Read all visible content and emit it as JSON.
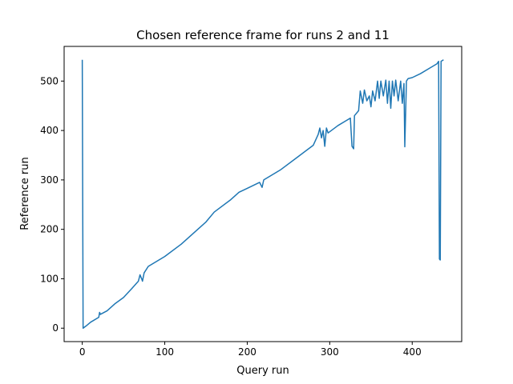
{
  "chart_data": {
    "type": "line",
    "title": "Chosen reference frame for runs 2 and 11",
    "xlabel": "Query run",
    "ylabel": "Reference run",
    "x": [
      0,
      1,
      5,
      10,
      20,
      21,
      22,
      30,
      40,
      50,
      60,
      68,
      70,
      72,
      73,
      75,
      80,
      100,
      120,
      140,
      150,
      160,
      180,
      190,
      200,
      215,
      218,
      220,
      240,
      260,
      280,
      286,
      288,
      290,
      292,
      294,
      296,
      298,
      310,
      320,
      325,
      327,
      329,
      330,
      335,
      337,
      340,
      342,
      345,
      348,
      350,
      352,
      355,
      358,
      360,
      362,
      365,
      368,
      370,
      372,
      374,
      376,
      378,
      380,
      383,
      386,
      388,
      390,
      391,
      393,
      395,
      400,
      410,
      420,
      430,
      432,
      433,
      434,
      435,
      438
    ],
    "series": [
      {
        "name": "reference",
        "color": "#1f77b4",
        "values": [
          543,
          0,
          5,
          12,
          22,
          32,
          28,
          35,
          50,
          62,
          80,
          95,
          108,
          100,
          95,
          112,
          125,
          145,
          170,
          200,
          215,
          235,
          260,
          275,
          283,
          295,
          285,
          300,
          320,
          345,
          370,
          392,
          405,
          385,
          400,
          368,
          405,
          395,
          410,
          420,
          425,
          368,
          363,
          430,
          440,
          480,
          455,
          482,
          460,
          470,
          448,
          480,
          460,
          500,
          465,
          500,
          470,
          502,
          455,
          500,
          445,
          500,
          470,
          502,
          460,
          500,
          455,
          495,
          367,
          500,
          505,
          507,
          515,
          525,
          535,
          540,
          140,
          138,
          540,
          543
        ]
      }
    ],
    "xlim": [
      -22,
      460
    ],
    "ylim": [
      -27.15,
      570.15
    ],
    "xticks": [
      0,
      100,
      200,
      300,
      400
    ],
    "yticks": [
      0,
      100,
      200,
      300,
      400,
      500
    ],
    "grid": false
  }
}
